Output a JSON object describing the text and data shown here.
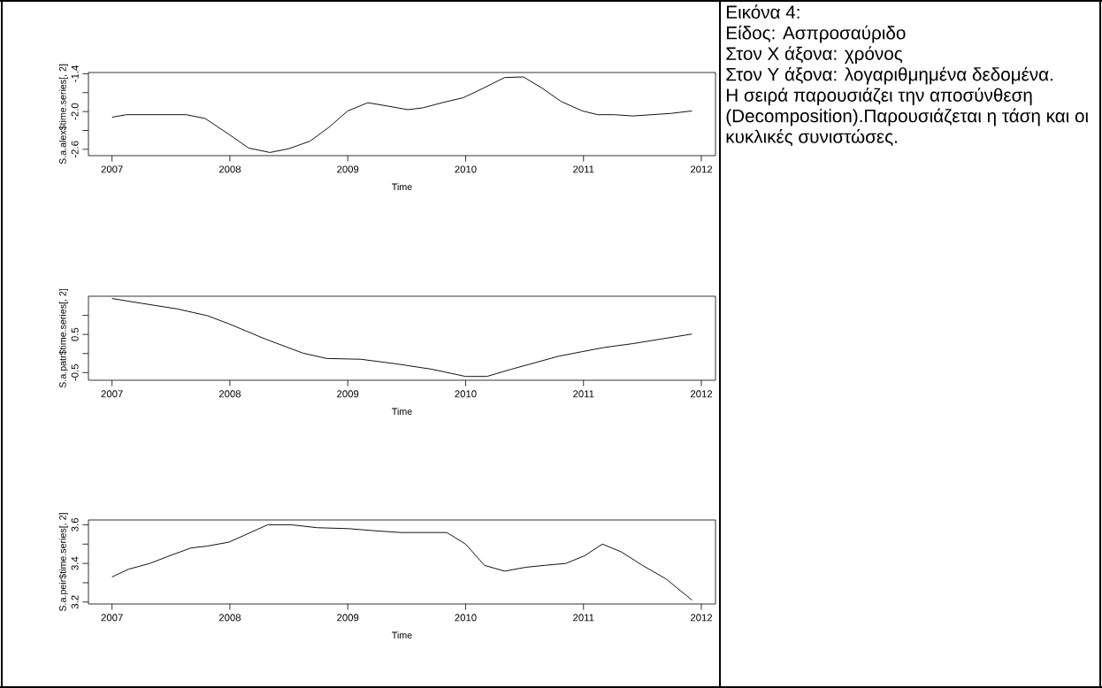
{
  "chart_data": [
    {
      "type": "line",
      "xlabel": "Time",
      "ylabel": "S.a.alex$time.series[, 2]",
      "xlim": [
        2006.8,
        2012.12
      ],
      "ylim": [
        -2.7,
        -1.38
      ],
      "xticks": [
        2007,
        2008,
        2009,
        2010,
        2011,
        2012
      ],
      "yticks": [
        {
          "value": -2.6,
          "label": "-2.6"
        },
        {
          "value": -2.3,
          "label": null
        },
        {
          "value": -2.0,
          "label": "-2.0"
        },
        {
          "value": -1.7,
          "label": null
        },
        {
          "value": -1.4,
          "label": "-1.4"
        }
      ],
      "x": [
        2007,
        2007.12,
        2007.63,
        2007.79,
        2007.99,
        2008.16,
        2008.34,
        2008.5,
        2008.68,
        2008.84,
        2009.0,
        2009.17,
        2009.33,
        2009.51,
        2009.64,
        2009.8,
        2009.98,
        2010.16,
        2010.33,
        2010.49,
        2010.65,
        2010.81,
        2010.99,
        2011.12,
        2011.26,
        2011.42,
        2011.58,
        2011.74,
        2011.92
      ],
      "series": [
        {
          "color": "#000000",
          "values": [
            -2.09,
            -2.05,
            -2.05,
            -2.11,
            -2.36,
            -2.58,
            -2.65,
            -2.59,
            -2.47,
            -2.25,
            -1.99,
            -1.86,
            -1.91,
            -1.97,
            -1.94,
            -1.86,
            -1.78,
            -1.62,
            -1.46,
            -1.45,
            -1.63,
            -1.84,
            -1.99,
            -2.05,
            -2.05,
            -2.07,
            -2.05,
            -2.03,
            -1.99
          ]
        }
      ]
    },
    {
      "type": "line",
      "xlabel": "Time",
      "ylabel": "S.a.patr$time.series[, 2]",
      "xlim": [
        2006.8,
        2012.12
      ],
      "ylim": [
        -0.7,
        1.5
      ],
      "xticks": [
        2007,
        2008,
        2009,
        2010,
        2011,
        2012
      ],
      "yticks": [
        {
          "value": -0.5,
          "label": "-0.5"
        },
        {
          "value": 0.0,
          "label": null
        },
        {
          "value": 0.5,
          "label": "0.5"
        },
        {
          "value": 1.0,
          "label": null
        }
      ],
      "x": [
        2007,
        2007.24,
        2007.55,
        2007.81,
        2007.99,
        2008.3,
        2008.62,
        2008.82,
        2009.11,
        2009.41,
        2009.71,
        2010.0,
        2010.18,
        2010.39,
        2010.59,
        2010.79,
        2010.99,
        2011.18,
        2011.42,
        2011.66,
        2011.92
      ],
      "series": [
        {
          "color": "#000000",
          "values": [
            1.44,
            1.32,
            1.17,
            0.99,
            0.78,
            0.38,
            0.01,
            -0.13,
            -0.15,
            -0.27,
            -0.41,
            -0.6,
            -0.6,
            -0.41,
            -0.24,
            -0.07,
            0.05,
            0.16,
            0.26,
            0.38,
            0.51
          ]
        }
      ]
    },
    {
      "type": "line",
      "xlabel": "Time",
      "ylabel": "S.a.peir$time.series[, 2]",
      "xlim": [
        2006.8,
        2012.12
      ],
      "ylim": [
        3.19,
        3.625
      ],
      "xticks": [
        2007,
        2008,
        2009,
        2010,
        2011,
        2012
      ],
      "yticks": [
        {
          "value": 3.2,
          "label": "3.2"
        },
        {
          "value": 3.3,
          "label": null
        },
        {
          "value": 3.4,
          "label": "3.4"
        },
        {
          "value": 3.5,
          "label": null
        },
        {
          "value": 3.6,
          "label": "3.6"
        }
      ],
      "x": [
        2007,
        2007.14,
        2007.32,
        2007.49,
        2007.67,
        2007.81,
        2007.99,
        2008.12,
        2008.32,
        2008.52,
        2008.74,
        2009.01,
        2009.21,
        2009.45,
        2009.84,
        2010.0,
        2010.16,
        2010.33,
        2010.51,
        2010.67,
        2010.85,
        2011.01,
        2011.16,
        2011.32,
        2011.5,
        2011.7,
        2011.92
      ],
      "series": [
        {
          "color": "#000000",
          "values": [
            3.33,
            3.37,
            3.4,
            3.44,
            3.48,
            3.49,
            3.51,
            3.545,
            3.6,
            3.6,
            3.585,
            3.58,
            3.57,
            3.56,
            3.56,
            3.5,
            3.39,
            3.36,
            3.38,
            3.39,
            3.4,
            3.44,
            3.5,
            3.46,
            3.39,
            3.32,
            3.21
          ]
        }
      ]
    },
    {
      "type": "other",
      "annotations": [
        "Εικόνα 4:",
        "Είδος: Ασπροσαύριδο",
        "Στον Χ άξονα: χρόνος",
        "Στον Υ άξονα: λογαριθμημένα δεδομένα.",
        "Η σειρά παρουσιάζει την αποσύνθεση (Decomposition).Παρουσιάζεται η τάση και οι κυκλικές συνιστώσες."
      ]
    }
  ]
}
